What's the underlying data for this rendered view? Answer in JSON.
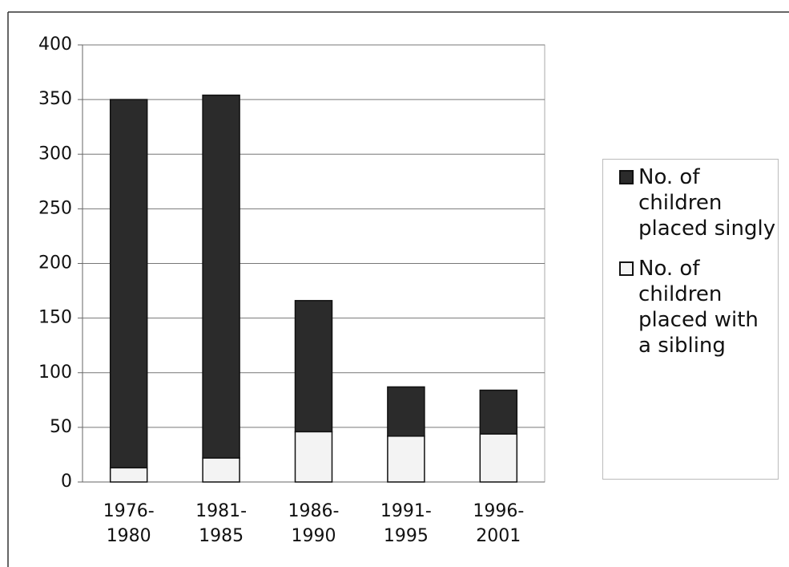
{
  "chart_data": {
    "type": "stacked_bar",
    "categories": [
      "1976-1980",
      "1981-1985",
      "1986-1990",
      "1991-1995",
      "1996-2001"
    ],
    "series": [
      {
        "name": "No. of children placed singly",
        "color": "#2b2b2b",
        "values": [
          337,
          332,
          120,
          45,
          40
        ]
      },
      {
        "name": "No. of children placed with a sibling",
        "color": "#f3f3f3",
        "values": [
          13,
          22,
          46,
          42,
          44
        ]
      }
    ],
    "ylim": [
      0,
      400
    ],
    "yticks": [
      0,
      50,
      100,
      150,
      200,
      250,
      300,
      350,
      400
    ],
    "grid": true,
    "legend": "right"
  }
}
